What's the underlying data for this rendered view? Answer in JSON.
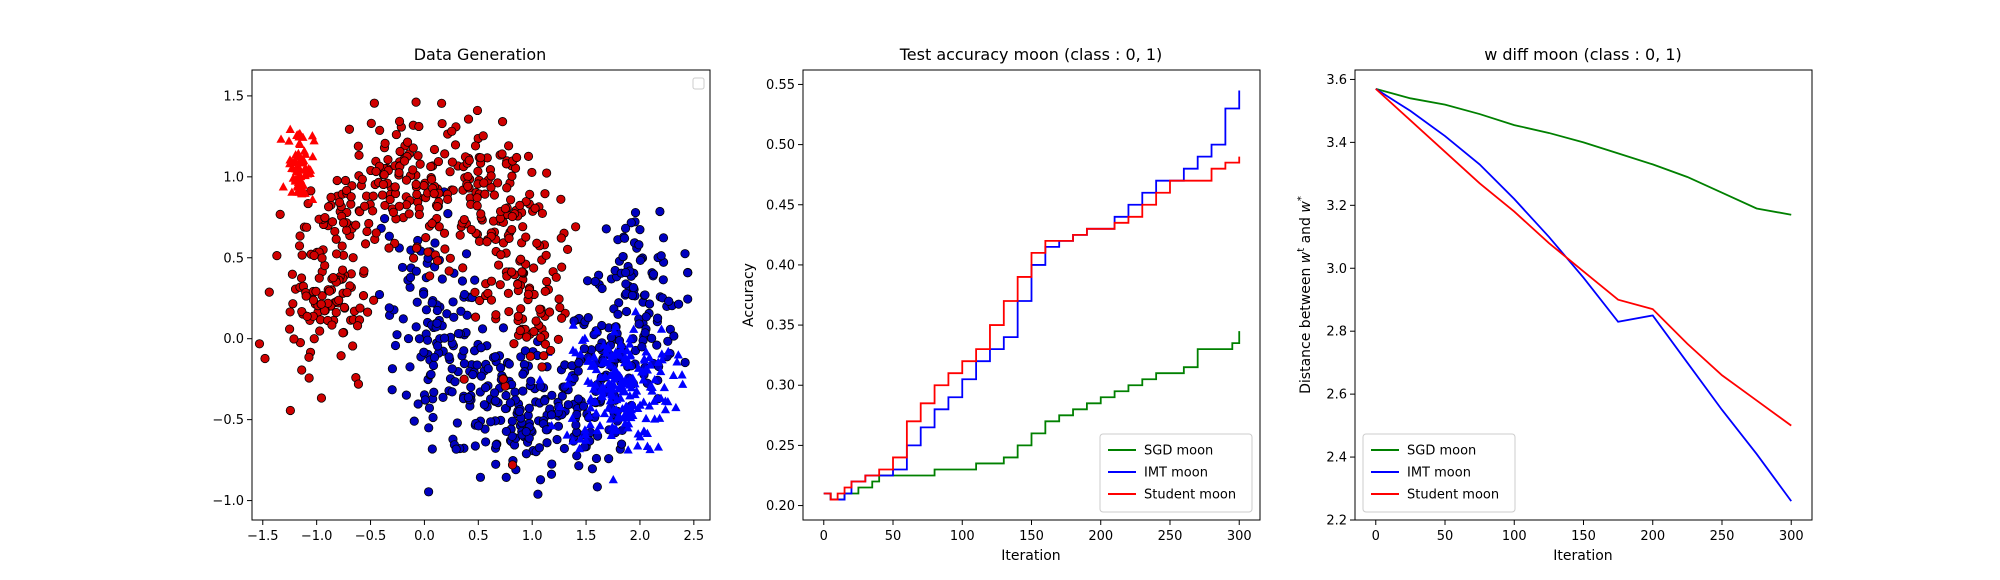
{
  "colors": {
    "red": "#ff0000",
    "blue": "#0000ff",
    "green": "#008000",
    "dark_red": "#d00000",
    "dark_blue": "#0000c0"
  },
  "chart_data": [
    {
      "type": "scatter",
      "title": "Data Generation",
      "xlabel": "",
      "ylabel": "",
      "xlim": [
        -1.6,
        2.65
      ],
      "ylim": [
        -1.12,
        1.66
      ],
      "xticks": [
        -1.5,
        -1.0,
        -0.5,
        0.0,
        0.5,
        1.0,
        1.5,
        2.0,
        2.5
      ],
      "xtick_labels": [
        "−1.5",
        "−1.0",
        "−0.5",
        "0.0",
        "0.5",
        "1.0",
        "1.5",
        "2.0",
        "2.5"
      ],
      "yticks": [
        -1.0,
        -0.5,
        0.0,
        0.5,
        1.0,
        1.5
      ],
      "ytick_labels": [
        "−1.0",
        "−0.5",
        "0.0",
        "0.5",
        "1.0",
        "1.5"
      ],
      "legend": "top-right (empty)",
      "grid": false,
      "series": [
        {
          "class": 0,
          "marker": "circle",
          "color": "red",
          "region": "upper moon",
          "approx_count": 500,
          "x_range": [
            -1.4,
            1.35
          ],
          "y_range": [
            -0.35,
            1.55
          ]
        },
        {
          "class": 0,
          "marker": "triangle",
          "color": "red",
          "region": "cluster",
          "approx_count": 70,
          "center": [
            -1.15,
            1.08
          ],
          "spread": [
            0.06,
            0.12
          ]
        },
        {
          "class": 1,
          "marker": "circle",
          "color": "blue",
          "region": "lower moon",
          "approx_count": 500,
          "x_range": [
            -0.25,
            2.45
          ],
          "y_range": [
            -1.0,
            0.8
          ]
        },
        {
          "class": 1,
          "marker": "triangle",
          "color": "blue",
          "region": "cluster",
          "approx_count": 200,
          "center": [
            1.8,
            -0.3
          ],
          "spread": [
            0.25,
            0.2
          ]
        }
      ]
    },
    {
      "type": "line",
      "title": "Test accuracy moon (class : 0, 1)",
      "xlabel": "Iteration",
      "ylabel": "Accuracy",
      "xlim": [
        -15,
        315
      ],
      "ylim": [
        0.188,
        0.562
      ],
      "xticks": [
        0,
        50,
        100,
        150,
        200,
        250,
        300
      ],
      "yticks": [
        0.2,
        0.25,
        0.3,
        0.35,
        0.4,
        0.45,
        0.5,
        0.55
      ],
      "ytick_labels": [
        "0.20",
        "0.25",
        "0.30",
        "0.35",
        "0.40",
        "0.45",
        "0.50",
        "0.55"
      ],
      "legend": "bottom-right",
      "grid": false,
      "series": [
        {
          "name": "SGD moon",
          "color": "green",
          "step": true,
          "x": [
            0,
            5,
            10,
            15,
            20,
            25,
            30,
            35,
            40,
            45,
            50,
            60,
            70,
            80,
            90,
            100,
            110,
            120,
            130,
            140,
            150,
            160,
            170,
            180,
            190,
            200,
            210,
            220,
            230,
            240,
            250,
            260,
            270,
            280,
            290,
            295,
            300
          ],
          "values": [
            0.21,
            0.205,
            0.205,
            0.21,
            0.21,
            0.215,
            0.215,
            0.22,
            0.225,
            0.225,
            0.225,
            0.225,
            0.225,
            0.23,
            0.23,
            0.23,
            0.235,
            0.235,
            0.24,
            0.25,
            0.26,
            0.27,
            0.275,
            0.28,
            0.285,
            0.29,
            0.295,
            0.3,
            0.305,
            0.31,
            0.31,
            0.315,
            0.33,
            0.33,
            0.33,
            0.335,
            0.345
          ]
        },
        {
          "name": "IMT moon",
          "color": "blue",
          "step": true,
          "x": [
            0,
            5,
            10,
            15,
            20,
            30,
            40,
            50,
            60,
            70,
            80,
            90,
            100,
            110,
            120,
            130,
            140,
            150,
            160,
            170,
            180,
            190,
            200,
            210,
            220,
            230,
            240,
            250,
            260,
            270,
            280,
            290,
            300
          ],
          "values": [
            0.21,
            0.205,
            0.205,
            0.21,
            0.22,
            0.225,
            0.225,
            0.23,
            0.25,
            0.265,
            0.28,
            0.29,
            0.305,
            0.32,
            0.33,
            0.34,
            0.37,
            0.4,
            0.415,
            0.42,
            0.425,
            0.43,
            0.43,
            0.44,
            0.45,
            0.46,
            0.47,
            0.47,
            0.48,
            0.49,
            0.5,
            0.53,
            0.545
          ]
        },
        {
          "name": "Student moon",
          "color": "red",
          "step": true,
          "x": [
            0,
            5,
            10,
            15,
            20,
            30,
            40,
            50,
            60,
            70,
            80,
            90,
            100,
            110,
            120,
            130,
            140,
            150,
            160,
            170,
            180,
            190,
            200,
            210,
            220,
            230,
            240,
            250,
            260,
            270,
            280,
            290,
            300
          ],
          "values": [
            0.21,
            0.205,
            0.21,
            0.215,
            0.22,
            0.225,
            0.23,
            0.24,
            0.27,
            0.285,
            0.3,
            0.31,
            0.32,
            0.33,
            0.35,
            0.37,
            0.39,
            0.41,
            0.42,
            0.42,
            0.425,
            0.43,
            0.43,
            0.435,
            0.44,
            0.45,
            0.46,
            0.47,
            0.47,
            0.47,
            0.48,
            0.485,
            0.49
          ]
        }
      ]
    },
    {
      "type": "line",
      "title": "w diff moon (class : 0, 1)",
      "xlabel": "Iteration",
      "ylabel": "Distance between w^t and w^*",
      "ylabel_parts": {
        "prefix": "Distance between ",
        "w": "w",
        "sup1": "t",
        "mid": " and ",
        "sup2": "*"
      },
      "xlim": [
        -15,
        315
      ],
      "ylim": [
        2.2,
        3.63
      ],
      "xticks": [
        0,
        50,
        100,
        150,
        200,
        250,
        300
      ],
      "yticks": [
        2.2,
        2.4,
        2.6,
        2.8,
        3.0,
        3.2,
        3.4,
        3.6
      ],
      "ytick_labels": [
        "2.2",
        "2.4",
        "2.6",
        "2.8",
        "3.0",
        "3.2",
        "3.4",
        "3.6"
      ],
      "legend": "bottom-left",
      "grid": false,
      "series": [
        {
          "name": "SGD moon",
          "color": "green",
          "x": [
            0,
            25,
            50,
            75,
            100,
            125,
            150,
            175,
            200,
            225,
            250,
            275,
            300
          ],
          "values": [
            3.57,
            3.54,
            3.52,
            3.49,
            3.455,
            3.43,
            3.4,
            3.365,
            3.33,
            3.29,
            3.24,
            3.19,
            3.17
          ]
        },
        {
          "name": "IMT moon",
          "color": "blue",
          "x": [
            0,
            25,
            50,
            75,
            100,
            125,
            150,
            175,
            200,
            225,
            250,
            275,
            300
          ],
          "values": [
            3.57,
            3.5,
            3.42,
            3.33,
            3.22,
            3.1,
            2.97,
            2.83,
            2.85,
            2.7,
            2.55,
            2.41,
            2.26
          ]
        },
        {
          "name": "Student moon",
          "color": "red",
          "x": [
            0,
            25,
            50,
            75,
            100,
            125,
            150,
            175,
            200,
            225,
            250,
            275,
            300
          ],
          "values": [
            3.57,
            3.47,
            3.37,
            3.27,
            3.18,
            3.08,
            2.99,
            2.9,
            2.87,
            2.76,
            2.66,
            2.58,
            2.5
          ]
        }
      ]
    }
  ]
}
